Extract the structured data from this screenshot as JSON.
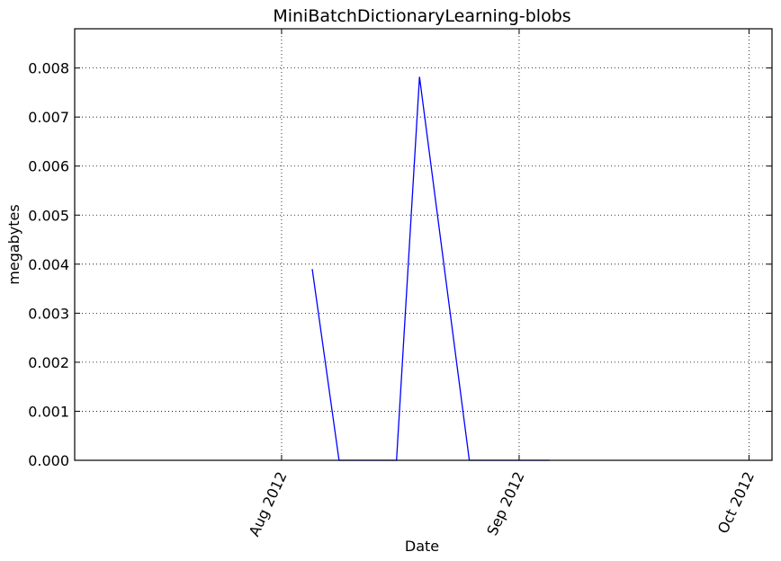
{
  "chart_data": {
    "type": "line",
    "title": "MiniBatchDictionaryLearning-blobs",
    "xlabel": "Date",
    "ylabel": "megabytes",
    "xlim": [
      "2012-07-05",
      "2012-10-04"
    ],
    "ylim": [
      0,
      0.0088
    ],
    "x_ticks": [
      {
        "value": "2012-08-01",
        "label": "Aug 2012"
      },
      {
        "value": "2012-09-01",
        "label": "Sep 2012"
      },
      {
        "value": "2012-10-01",
        "label": "Oct 2012"
      }
    ],
    "y_ticks": [
      {
        "value": 0.0,
        "label": "0.000"
      },
      {
        "value": 0.001,
        "label": "0.001"
      },
      {
        "value": 0.002,
        "label": "0.002"
      },
      {
        "value": 0.003,
        "label": "0.003"
      },
      {
        "value": 0.004,
        "label": "0.004"
      },
      {
        "value": 0.005,
        "label": "0.005"
      },
      {
        "value": 0.006,
        "label": "0.006"
      },
      {
        "value": 0.007,
        "label": "0.007"
      },
      {
        "value": 0.008,
        "label": "0.008"
      }
    ],
    "grid": true,
    "series": [
      {
        "color": "#0000ff",
        "x": [
          "2012-08-05",
          "2012-08-08.5",
          "2012-08-16",
          "2012-08-19",
          "2012-08-25.5",
          "2012-09-05"
        ],
        "y": [
          0.0039,
          0.0,
          0.0,
          0.00782,
          0.0,
          0.0
        ]
      }
    ]
  }
}
